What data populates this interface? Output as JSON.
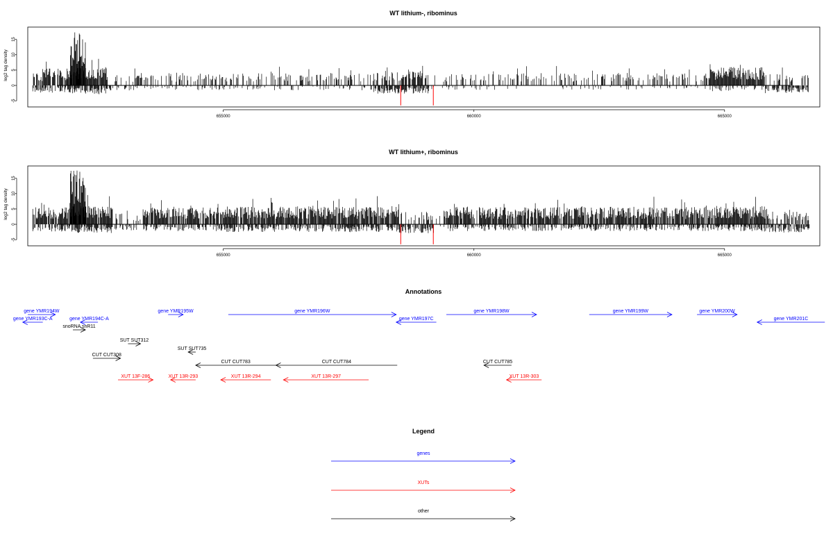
{
  "chart_data": [
    {
      "type": "bar",
      "title": "WT lithium-, ribominus",
      "ylabel": "log2 tag density",
      "ylim": [
        -7,
        19
      ],
      "yticks": [
        -5,
        0,
        5,
        10,
        15
      ],
      "xlim": [
        651100,
        666900
      ],
      "xticks": [
        655000,
        660000,
        665000
      ],
      "xticklabels": [
        "655000",
        "660000",
        "665000"
      ],
      "signal_density": [
        [
          651200,
          651400,
          0.5,
          0.7
        ],
        [
          651400,
          651900,
          0.9,
          0.8
        ],
        [
          651900,
          652700,
          1.0,
          1.0
        ],
        [
          652700,
          653200,
          0.25,
          0.3
        ],
        [
          653200,
          658000,
          0.35,
          0.25
        ],
        [
          658000,
          659100,
          0.6,
          0.9
        ],
        [
          659100,
          659400,
          0.1,
          0.1
        ],
        [
          659400,
          664700,
          0.35,
          0.15
        ],
        [
          664700,
          665800,
          1.0,
          0.4
        ],
        [
          665800,
          666700,
          0.3,
          0.8
        ]
      ],
      "highlights": [
        {
          "x": 658540,
          "y": -6.5,
          "color": "#ff0000"
        },
        {
          "x": 659190,
          "y": -6.5,
          "color": "#ff0000"
        }
      ]
    },
    {
      "type": "bar",
      "title": "WT lithium+, ribominus",
      "ylabel": "log2 tag density",
      "ylim": [
        -7,
        19
      ],
      "yticks": [
        -5,
        0,
        5,
        10,
        15
      ],
      "xlim": [
        651100,
        666900
      ],
      "xticks": [
        655000,
        660000,
        665000
      ],
      "xticklabels": [
        "655000",
        "660000",
        "665000"
      ],
      "signal_density": [
        [
          651200,
          652000,
          0.9,
          0.7
        ],
        [
          652000,
          652800,
          1.0,
          1.0
        ],
        [
          652800,
          653400,
          0.2,
          0.5
        ],
        [
          653400,
          655000,
          0.9,
          0.6
        ],
        [
          655000,
          658500,
          0.95,
          0.8
        ],
        [
          658500,
          659200,
          0.4,
          1.0
        ],
        [
          659200,
          659400,
          0.05,
          0.05
        ],
        [
          659400,
          664700,
          0.9,
          0.6
        ],
        [
          664700,
          665900,
          1.0,
          0.7
        ],
        [
          665900,
          666700,
          0.4,
          0.9
        ]
      ],
      "highlights": [
        {
          "x": 658540,
          "y": -6.5,
          "color": "#ff0000"
        },
        {
          "x": 659190,
          "y": -6.5,
          "color": "#ff0000"
        }
      ]
    }
  ],
  "annotations": {
    "title": "Annotations",
    "items": [
      {
        "label": "gene YMR194W",
        "start": 651100,
        "end": 651650,
        "row": 0,
        "strand": "+",
        "color": "#0000ff"
      },
      {
        "label": "gene YMR193C-A",
        "start": 651000,
        "end": 651400,
        "row": 1,
        "strand": "-",
        "color": "#0000ff"
      },
      {
        "label": "gene YMR194C-A",
        "start": 652150,
        "end": 652500,
        "row": 1,
        "strand": "-",
        "color": "#0000ff"
      },
      {
        "label": "gene YMR195W",
        "start": 653900,
        "end": 654200,
        "row": 0,
        "strand": "+",
        "color": "#0000ff"
      },
      {
        "label": "gene YMR196W",
        "start": 655100,
        "end": 658450,
        "row": 0,
        "strand": "+",
        "color": "#0000ff"
      },
      {
        "label": "gene YMR197C",
        "start": 658450,
        "end": 659250,
        "row": 1,
        "strand": "-",
        "color": "#0000ff"
      },
      {
        "label": "gene YMR198W",
        "start": 659450,
        "end": 661250,
        "row": 0,
        "strand": "+",
        "color": "#0000ff"
      },
      {
        "label": "gene YMR199W",
        "start": 662300,
        "end": 663950,
        "row": 0,
        "strand": "+",
        "color": "#0000ff"
      },
      {
        "label": "gene YMR200W",
        "start": 664450,
        "end": 665250,
        "row": 0,
        "strand": "+",
        "color": "#0000ff"
      },
      {
        "label": "gene YMR201C",
        "start": 665650,
        "end": 667000,
        "row": 1,
        "strand": "-",
        "color": "#0000ff"
      },
      {
        "label": "snoRNA snR11",
        "start": 652000,
        "end": 652250,
        "row": 2,
        "strand": "+",
        "color": "#000000"
      },
      {
        "label": "SUT SUT312",
        "start": 653100,
        "end": 653350,
        "row": 3,
        "strand": "+",
        "color": "#000000"
      },
      {
        "label": "SUT SUT735",
        "start": 654300,
        "end": 654450,
        "row": 4,
        "strand": "-",
        "color": "#000000"
      },
      {
        "label": "CUT CUT308",
        "start": 652400,
        "end": 652950,
        "row": 5,
        "strand": "+",
        "color": "#000000"
      },
      {
        "label": "CUT CUT783",
        "start": 654450,
        "end": 656050,
        "row": 6,
        "strand": "-",
        "color": "#000000"
      },
      {
        "label": "CUT CUT784",
        "start": 656050,
        "end": 658470,
        "row": 6,
        "strand": "-",
        "color": "#000000"
      },
      {
        "label": "CUT CUT785",
        "start": 660200,
        "end": 660750,
        "row": 6,
        "strand": "-",
        "color": "#000000"
      },
      {
        "label": "XUT 13F-286",
        "start": 652900,
        "end": 653600,
        "row": 7,
        "strand": "+",
        "color": "#ff0000"
      },
      {
        "label": "XUT 13R-293",
        "start": 653950,
        "end": 654450,
        "row": 7,
        "strand": "-",
        "color": "#ff0000"
      },
      {
        "label": "XUT 13R-294",
        "start": 654950,
        "end": 655950,
        "row": 7,
        "strand": "-",
        "color": "#ff0000"
      },
      {
        "label": "XUT 13R-297",
        "start": 656200,
        "end": 657900,
        "row": 7,
        "strand": "-",
        "color": "#ff0000"
      },
      {
        "label": "XUT 13R-303",
        "start": 660650,
        "end": 661350,
        "row": 7,
        "strand": "-",
        "color": "#ff0000"
      }
    ]
  },
  "legend": {
    "title": "Legend",
    "items": [
      {
        "label": "genes",
        "color": "#0000ff"
      },
      {
        "label": "XUTs",
        "color": "#ff0000"
      },
      {
        "label": "other",
        "color": "#000000"
      }
    ]
  }
}
